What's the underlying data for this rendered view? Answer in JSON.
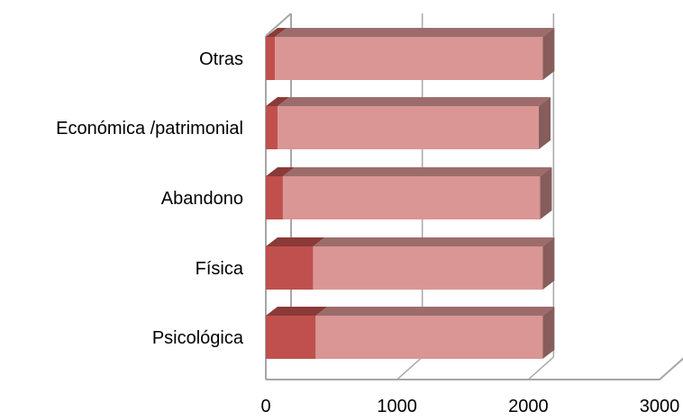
{
  "chart_data": {
    "type": "bar",
    "orientation": "horizontal",
    "stacked": true,
    "three_d": true,
    "categories": [
      "Psicológica",
      "Física",
      "Abandono",
      "Económica /patrimonial",
      "Otras"
    ],
    "series": [
      {
        "values": [
          380,
          360,
          130,
          90,
          70
        ],
        "color": "#c0504d"
      },
      {
        "values": [
          1730,
          1750,
          1960,
          1990,
          2040
        ],
        "color": "#d99694"
      }
    ],
    "xlim": [
      0,
      3000
    ],
    "xticks": [
      "0",
      "1000",
      "2000",
      "3000"
    ],
    "grid": true,
    "legend": "none",
    "title": "",
    "xlabel": "",
    "ylabel": ""
  }
}
